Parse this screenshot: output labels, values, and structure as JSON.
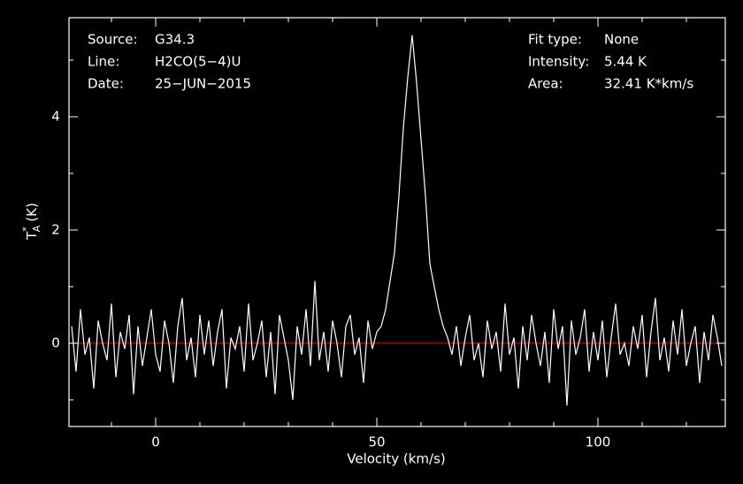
{
  "chart_data": {
    "type": "line",
    "info_left": [
      {
        "label": "Source:",
        "value": "G34.3"
      },
      {
        "label": "Line:",
        "value": "H2CO(5−4)U"
      },
      {
        "label": "Date:",
        "value": "25−JUN−2015"
      }
    ],
    "info_right": [
      {
        "label": "Fit type:",
        "value": "None"
      },
      {
        "label": "Intensity:",
        "value": "5.44 K"
      },
      {
        "label": "Area:",
        "value": "32.41 K*km/s"
      }
    ],
    "x_label": "Velocity (km/s)",
    "y_label": {
      "symbol": "T",
      "sup": "*",
      "sub": "A",
      "unit": "(K)"
    },
    "xlim": [
      -19.6,
      128.8
    ],
    "ylim": [
      -1.47,
      5.75
    ],
    "xticks": [
      0,
      50,
      100
    ],
    "yticks": [
      0,
      2,
      4
    ],
    "xminorticks": [
      -10,
      10,
      20,
      30,
      40,
      60,
      70,
      80,
      90,
      110,
      120
    ],
    "yminorticks": [
      -1,
      1,
      3,
      5
    ],
    "baseline": {
      "value": 0,
      "color": "#ff0000"
    },
    "series": [
      {
        "color": "#ffffff",
        "x": [
          -19,
          -18,
          -17,
          -16,
          -15,
          -14,
          -13,
          -12,
          -11,
          -10,
          -9,
          -8,
          -7,
          -6,
          -5,
          -4,
          -3,
          -2,
          -1,
          0,
          1,
          2,
          3,
          4,
          5,
          6,
          7,
          8,
          9,
          10,
          11,
          12,
          13,
          14,
          15,
          16,
          17,
          18,
          19,
          20,
          21,
          22,
          23,
          24,
          25,
          26,
          27,
          28,
          29,
          30,
          31,
          32,
          33,
          34,
          35,
          36,
          37,
          38,
          39,
          40,
          41,
          42,
          43,
          44,
          45,
          46,
          47,
          48,
          49,
          50,
          51,
          52,
          53,
          54,
          55,
          56,
          57,
          58,
          59,
          60,
          61,
          62,
          63,
          64,
          65,
          66,
          67,
          68,
          69,
          70,
          71,
          72,
          73,
          74,
          75,
          76,
          77,
          78,
          79,
          80,
          81,
          82,
          83,
          84,
          85,
          86,
          87,
          88,
          89,
          90,
          91,
          92,
          93,
          94,
          95,
          96,
          97,
          98,
          99,
          100,
          101,
          102,
          103,
          104,
          105,
          106,
          107,
          108,
          109,
          110,
          111,
          112,
          113,
          114,
          115,
          116,
          117,
          118,
          119,
          120,
          121,
          122,
          123,
          124,
          125,
          126,
          127,
          128
        ],
        "values": [
          0.3,
          -0.5,
          0.6,
          -0.2,
          0.1,
          -0.8,
          0.4,
          0.0,
          -0.3,
          0.7,
          -0.6,
          0.2,
          -0.1,
          0.5,
          -0.9,
          0.3,
          -0.4,
          0.1,
          0.6,
          -0.2,
          -0.5,
          0.4,
          0.0,
          -0.7,
          0.3,
          0.8,
          -0.3,
          0.1,
          -0.6,
          0.5,
          -0.2,
          0.4,
          -0.4,
          0.2,
          0.6,
          -0.8,
          0.1,
          -0.1,
          0.3,
          -0.5,
          0.7,
          -0.3,
          0.0,
          0.4,
          -0.6,
          0.2,
          -0.9,
          0.5,
          0.1,
          -0.3,
          -1.0,
          0.3,
          -0.2,
          0.6,
          -0.4,
          1.1,
          -0.3,
          0.2,
          -0.5,
          0.4,
          0.0,
          -0.6,
          0.3,
          0.5,
          -0.2,
          0.1,
          -0.7,
          0.4,
          -0.1,
          0.2,
          0.3,
          0.6,
          1.1,
          1.6,
          2.6,
          3.8,
          4.7,
          5.44,
          4.6,
          3.6,
          2.6,
          1.4,
          1.0,
          0.6,
          0.3,
          0.1,
          -0.2,
          0.3,
          -0.4,
          0.1,
          0.5,
          -0.3,
          0.0,
          -0.6,
          0.4,
          -0.1,
          0.2,
          -0.5,
          0.7,
          -0.2,
          0.1,
          -0.8,
          0.3,
          -0.3,
          0.5,
          0.0,
          -0.4,
          0.2,
          -0.7,
          0.6,
          -0.1,
          0.3,
          -1.1,
          0.4,
          -0.2,
          0.1,
          0.6,
          -0.5,
          0.2,
          -0.3,
          0.4,
          -0.6,
          0.1,
          0.7,
          -0.2,
          0.0,
          -0.4,
          0.3,
          -0.1,
          0.5,
          -0.6,
          0.2,
          0.8,
          -0.3,
          0.1,
          -0.5,
          0.4,
          -0.2,
          0.6,
          -0.4,
          0.0,
          0.3,
          -0.7,
          0.2,
          -0.3,
          0.5,
          0.1,
          -0.4
        ]
      }
    ]
  }
}
